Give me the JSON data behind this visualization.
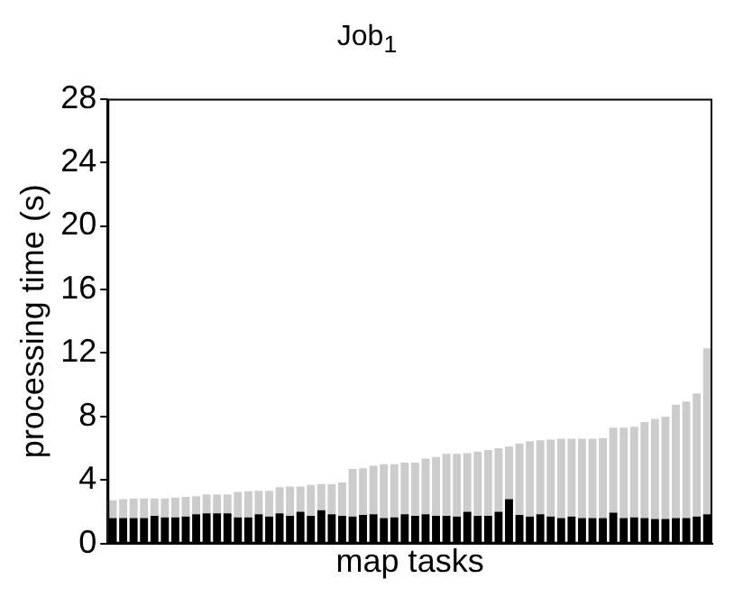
{
  "chart_data": {
    "type": "bar",
    "title": "Job$_{1}$",
    "xlabel": "map tasks",
    "ylabel": "processing time (s)",
    "categories": [
      null,
      null,
      null,
      null,
      null,
      null,
      null,
      null,
      null,
      null,
      null,
      null,
      null,
      null,
      null,
      null,
      null,
      null,
      null,
      null,
      null,
      null,
      null,
      null,
      null,
      null,
      null,
      null,
      null,
      null,
      null,
      null,
      null,
      null,
      null,
      null,
      null,
      null,
      null,
      null,
      null,
      null,
      null,
      null,
      null,
      null,
      null,
      null,
      null,
      null,
      null,
      null,
      null,
      null,
      null,
      null,
      null,
      null
    ],
    "stacked": true,
    "series": [
      {
        "color": "#000000",
        "values": [
          1.6,
          1.6,
          1.6,
          1.6,
          1.75,
          1.65,
          1.65,
          1.7,
          1.85,
          1.9,
          1.9,
          1.9,
          1.65,
          1.65,
          1.85,
          1.7,
          1.9,
          1.75,
          2.0,
          1.75,
          2.1,
          1.85,
          1.75,
          1.7,
          1.8,
          1.85,
          1.6,
          1.65,
          1.85,
          1.75,
          1.85,
          1.75,
          1.75,
          1.7,
          2.0,
          1.75,
          1.75,
          2.0,
          2.8,
          1.8,
          1.7,
          1.85,
          1.7,
          1.6,
          1.7,
          1.6,
          1.6,
          1.6,
          1.95,
          1.6,
          1.65,
          1.6,
          1.55,
          1.55,
          1.6,
          1.6,
          1.7,
          1.85
        ]
      },
      {
        "color": "#cccccc",
        "values": [
          1.13,
          1.2,
          1.24,
          1.24,
          1.09,
          1.19,
          1.25,
          1.24,
          1.13,
          1.2,
          1.2,
          1.2,
          1.6,
          1.65,
          1.48,
          1.63,
          1.65,
          1.85,
          1.6,
          1.95,
          1.65,
          1.9,
          2.1,
          3.0,
          2.95,
          3.05,
          3.4,
          3.35,
          3.25,
          3.35,
          3.5,
          3.7,
          3.9,
          3.95,
          3.7,
          4.05,
          4.15,
          4.0,
          3.3,
          4.5,
          4.75,
          4.65,
          4.85,
          5.0,
          4.9,
          5.0,
          5.0,
          5.05,
          5.35,
          5.7,
          5.7,
          6.05,
          6.3,
          6.45,
          7.15,
          7.35,
          7.75,
          10.45
        ]
      }
    ],
    "ylim": [
      0,
      28
    ],
    "yticks": [
      0,
      4,
      8,
      12,
      16,
      20,
      24,
      28
    ],
    "grid": false,
    "legend": false,
    "tick_labels": "y"
  }
}
